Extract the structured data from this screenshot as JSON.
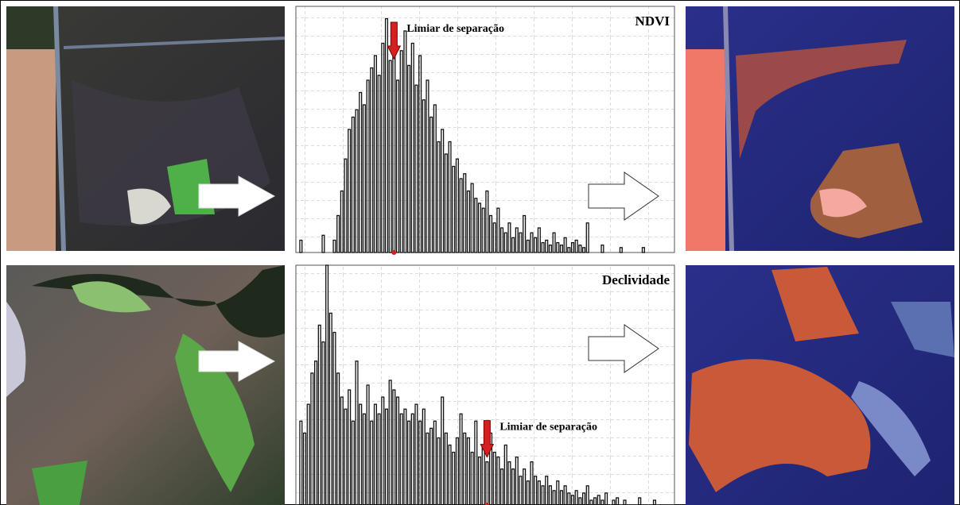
{
  "chart_data": [
    {
      "type": "bar",
      "title": "NDVI",
      "annotation": "Limiar de separação",
      "annotation_index": 25,
      "ylim": [
        0,
        100
      ],
      "color": "#111111",
      "values": [
        5,
        0,
        0,
        0,
        0,
        0,
        7,
        0,
        0,
        5,
        15,
        25,
        38,
        50,
        55,
        58,
        65,
        60,
        70,
        75,
        80,
        72,
        85,
        95,
        78,
        88,
        70,
        82,
        90,
        76,
        85,
        68,
        80,
        62,
        70,
        55,
        60,
        45,
        50,
        40,
        45,
        35,
        38,
        30,
        32,
        25,
        28,
        22,
        20,
        18,
        25,
        15,
        12,
        18,
        10,
        8,
        12,
        6,
        10,
        8,
        15,
        5,
        8,
        6,
        10,
        4,
        5,
        3,
        8,
        4,
        3,
        6,
        2,
        4,
        5,
        3,
        2,
        12,
        0,
        0,
        0,
        3,
        0,
        0,
        0,
        0,
        2,
        0,
        0,
        0,
        0,
        0,
        2,
        0,
        0,
        0,
        0,
        0,
        0,
        0
      ]
    },
    {
      "type": "bar",
      "title": "Declividade",
      "annotation": "Limiar de separação",
      "annotation_index": 50,
      "ylim": [
        0,
        100
      ],
      "color": "#111111",
      "values": [
        35,
        30,
        42,
        55,
        60,
        75,
        68,
        100,
        80,
        72,
        55,
        45,
        40,
        48,
        35,
        60,
        42,
        38,
        50,
        35,
        42,
        38,
        45,
        40,
        52,
        48,
        45,
        38,
        40,
        35,
        38,
        42,
        35,
        40,
        30,
        32,
        35,
        28,
        45,
        30,
        25,
        22,
        28,
        38,
        30,
        28,
        22,
        35,
        20,
        25,
        18,
        30,
        22,
        20,
        15,
        25,
        18,
        15,
        20,
        12,
        15,
        10,
        18,
        12,
        10,
        8,
        12,
        8,
        6,
        10,
        6,
        8,
        5,
        4,
        6,
        3,
        5,
        8,
        2,
        3,
        4,
        2,
        5,
        0,
        2,
        3,
        0,
        2,
        0,
        0,
        0,
        3,
        0,
        0,
        0,
        2,
        0,
        0,
        0,
        0
      ]
    }
  ]
}
